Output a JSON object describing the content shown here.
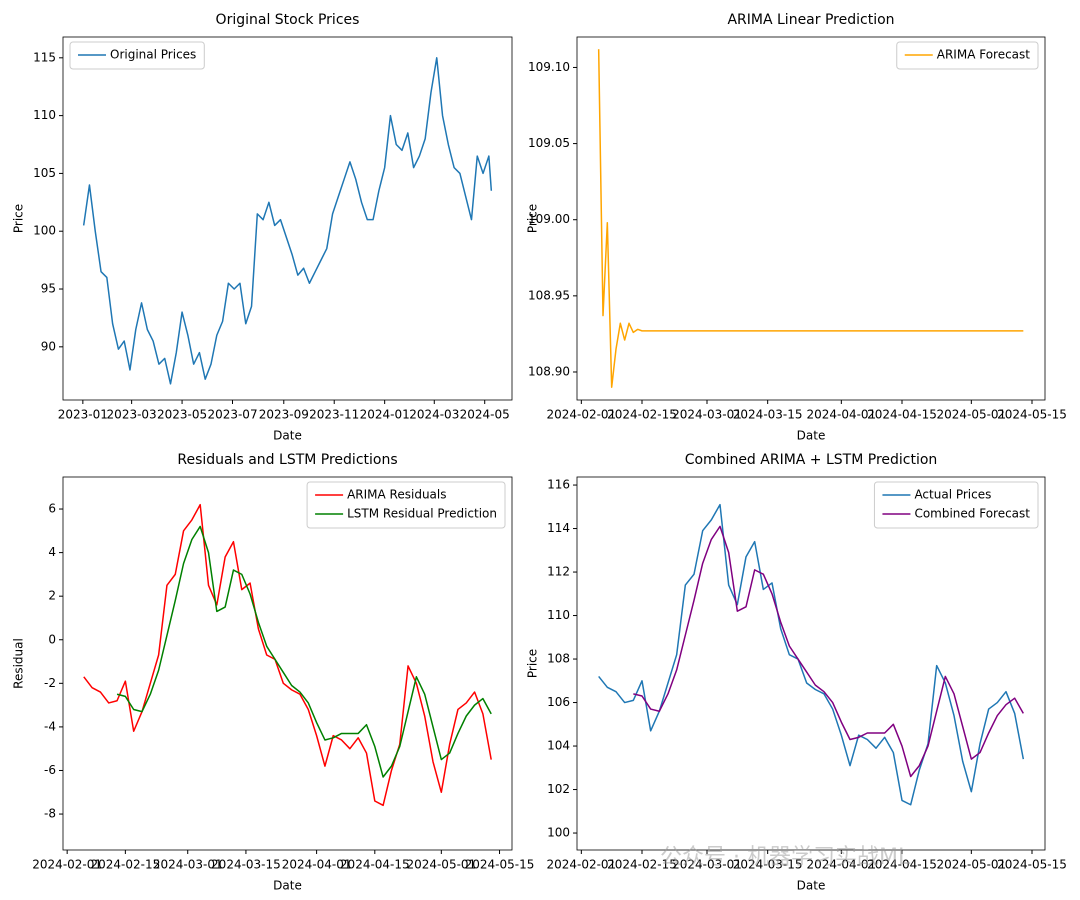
{
  "chart_data": [
    {
      "type": "line",
      "title": "Original Stock Prices",
      "x_label": "Date",
      "y_label": "Price",
      "legend": "upper left",
      "x": [
        "2023-01-02",
        "2023-01-09",
        "2023-01-16",
        "2023-01-23",
        "2023-01-30",
        "2023-02-06",
        "2023-02-13",
        "2023-02-20",
        "2023-02-27",
        "2023-03-06",
        "2023-03-13",
        "2023-03-20",
        "2023-03-27",
        "2023-04-03",
        "2023-04-10",
        "2023-04-17",
        "2023-04-24",
        "2023-05-01",
        "2023-05-08",
        "2023-05-15",
        "2023-05-22",
        "2023-05-29",
        "2023-06-05",
        "2023-06-12",
        "2023-06-19",
        "2023-06-26",
        "2023-07-03",
        "2023-07-10",
        "2023-07-17",
        "2023-07-24",
        "2023-07-31",
        "2023-08-07",
        "2023-08-14",
        "2023-08-21",
        "2023-08-28",
        "2023-09-04",
        "2023-09-11",
        "2023-09-18",
        "2023-09-25",
        "2023-10-02",
        "2023-10-09",
        "2023-10-16",
        "2023-10-23",
        "2023-10-30",
        "2023-11-06",
        "2023-11-13",
        "2023-11-20",
        "2023-11-27",
        "2023-12-04",
        "2023-12-11",
        "2023-12-18",
        "2023-12-25",
        "2024-01-01",
        "2024-01-08",
        "2024-01-15",
        "2024-01-22",
        "2024-01-29",
        "2024-02-05",
        "2024-02-12",
        "2024-02-19",
        "2024-02-26",
        "2024-03-04",
        "2024-03-11",
        "2024-03-18",
        "2024-03-25",
        "2024-04-01",
        "2024-04-08",
        "2024-04-15",
        "2024-04-22",
        "2024-04-29",
        "2024-05-06",
        "2024-05-09"
      ],
      "series": [
        {
          "name": "Original Prices",
          "color": "#1f77b4",
          "values": [
            100.5,
            104,
            100,
            96.5,
            96,
            92,
            89.8,
            90.5,
            88,
            91.5,
            93.8,
            91.5,
            90.5,
            88.5,
            89,
            86.8,
            89.5,
            93,
            91,
            88.5,
            89.5,
            87.2,
            88.5,
            91,
            92.2,
            95.5,
            95,
            95.5,
            92,
            93.5,
            101.5,
            101,
            102.5,
            100.5,
            101,
            99.5,
            98,
            96.2,
            96.8,
            95.5,
            96.5,
            97.5,
            98.5,
            101.5,
            103,
            104.5,
            106,
            104.5,
            102.5,
            101,
            101,
            103.5,
            105.5,
            110,
            107.5,
            107,
            108.5,
            105.5,
            106.5,
            108,
            112,
            115,
            110,
            107.5,
            105.5,
            105,
            103,
            101,
            106.5,
            105,
            106.5,
            103.5
          ]
        }
      ],
      "xlim": [
        "2022-12-08",
        "2024-06-03"
      ],
      "xticks": [
        "2023-01",
        "2023-03",
        "2023-05",
        "2023-07",
        "2023-09",
        "2023-11",
        "2024-01",
        "2024-03",
        "2024-05"
      ],
      "ylim": [
        85.4,
        116.8
      ],
      "yticks": [
        90,
        95,
        100,
        105,
        110,
        115
      ]
    },
    {
      "type": "line",
      "title": "ARIMA Linear Prediction",
      "x_label": "Date",
      "y_label": "Price",
      "legend": "upper right",
      "x": [
        "2024-02-05",
        "2024-02-06",
        "2024-02-07",
        "2024-02-08",
        "2024-02-09",
        "2024-02-10",
        "2024-02-11",
        "2024-02-12",
        "2024-02-13",
        "2024-02-14",
        "2024-02-15",
        "2024-05-13"
      ],
      "series": [
        {
          "name": "ARIMA Forecast",
          "color": "#ffa500",
          "values": [
            109.112,
            108.937,
            108.998,
            108.89,
            108.915,
            108.932,
            108.921,
            108.932,
            108.926,
            108.928,
            108.927,
            108.927
          ]
        }
      ],
      "xlim": [
        "2024-01-31",
        "2024-05-18"
      ],
      "xticks": [
        "2024-02-01",
        "2024-02-15",
        "2024-03-01",
        "2024-03-15",
        "2024-04-01",
        "2024-04-15",
        "2024-05-01",
        "2024-05-15"
      ],
      "ylim": [
        108.8816,
        109.12
      ],
      "yticks": [
        {
          "value": 108.9,
          "label": "108.90"
        },
        108.95,
        {
          "value": 109,
          "label": "109.00"
        },
        109.05,
        {
          "value": 109.1,
          "label": "109.10"
        }
      ]
    },
    {
      "type": "line",
      "title": "Residuals and LSTM Predictions",
      "x_label": "Date",
      "y_label": "Residual",
      "legend": "upper right",
      "x": [
        "2024-02-05",
        "2024-02-07",
        "2024-02-09",
        "2024-02-11",
        "2024-02-13",
        "2024-02-15",
        "2024-02-17",
        "2024-02-19",
        "2024-02-21",
        "2024-02-23",
        "2024-02-25",
        "2024-02-27",
        "2024-02-29",
        "2024-03-02",
        "2024-03-04",
        "2024-03-06",
        "2024-03-08",
        "2024-03-10",
        "2024-03-12",
        "2024-03-14",
        "2024-03-16",
        "2024-03-18",
        "2024-03-20",
        "2024-03-22",
        "2024-03-24",
        "2024-03-26",
        "2024-03-28",
        "2024-03-30",
        "2024-04-01",
        "2024-04-03",
        "2024-04-05",
        "2024-04-07",
        "2024-04-09",
        "2024-04-11",
        "2024-04-13",
        "2024-04-15",
        "2024-04-17",
        "2024-04-19",
        "2024-04-21",
        "2024-04-23",
        "2024-04-25",
        "2024-04-27",
        "2024-04-29",
        "2024-05-01",
        "2024-05-03",
        "2024-05-05",
        "2024-05-07",
        "2024-05-09",
        "2024-05-11",
        "2024-05-13"
      ],
      "series": [
        {
          "name": "ARIMA Residuals",
          "color": "#ff0000",
          "values": [
            -1.7,
            -2.2,
            -2.4,
            -2.9,
            -2.8,
            -1.9,
            -4.2,
            -3.3,
            -2.0,
            -0.7,
            2.5,
            3.0,
            5.0,
            5.5,
            6.2,
            2.5,
            1.6,
            3.8,
            4.5,
            2.3,
            2.6,
            0.5,
            -0.7,
            -0.9,
            -2.0,
            -2.3,
            -2.5,
            -3.2,
            -4.4,
            -5.8,
            -4.4,
            -4.6,
            -5.0,
            -4.5,
            -5.2,
            -7.4,
            -7.6,
            -6.0,
            -4.8,
            -1.2,
            -2.0,
            -3.5,
            -5.6,
            -7.0,
            -4.8,
            -3.2,
            -2.9,
            -2.4,
            -3.4,
            -5.5
          ]
        },
        {
          "name": "LSTM Residual Prediction",
          "color": "#008000",
          "values": [
            null,
            null,
            null,
            null,
            -2.5,
            -2.6,
            -3.2,
            -3.3,
            -2.5,
            -1.4,
            0.2,
            1.8,
            3.5,
            4.6,
            5.2,
            4.0,
            1.3,
            1.5,
            3.2,
            3.0,
            2.1,
            0.8,
            -0.3,
            -0.9,
            -1.5,
            -2.1,
            -2.4,
            -2.9,
            -3.8,
            -4.6,
            -4.5,
            -4.3,
            -4.3,
            -4.3,
            -3.9,
            -4.9,
            -6.3,
            -5.8,
            -4.9,
            -3.3,
            -1.7,
            -2.5,
            -4.0,
            -5.5,
            -5.2,
            -4.3,
            -3.5,
            -3.0,
            -2.7,
            -3.4
          ]
        }
      ],
      "xlim": [
        "2024-01-31",
        "2024-05-18"
      ],
      "xticks": [
        "2024-02-01",
        "2024-02-15",
        "2024-03-01",
        "2024-03-15",
        "2024-04-01",
        "2024-04-15",
        "2024-05-01",
        "2024-05-15"
      ],
      "ylim": [
        -9.65,
        7.47
      ],
      "yticks": [
        -8,
        -6,
        -4,
        -2,
        0,
        2,
        4,
        6
      ]
    },
    {
      "type": "line",
      "title": "Combined ARIMA + LSTM Prediction",
      "x_label": "Date",
      "y_label": "Price",
      "legend": "upper right",
      "x": [
        "2024-02-05",
        "2024-02-07",
        "2024-02-09",
        "2024-02-11",
        "2024-02-13",
        "2024-02-15",
        "2024-02-17",
        "2024-02-19",
        "2024-02-21",
        "2024-02-23",
        "2024-02-25",
        "2024-02-27",
        "2024-02-29",
        "2024-03-02",
        "2024-03-04",
        "2024-03-06",
        "2024-03-08",
        "2024-03-10",
        "2024-03-12",
        "2024-03-14",
        "2024-03-16",
        "2024-03-18",
        "2024-03-20",
        "2024-03-22",
        "2024-03-24",
        "2024-03-26",
        "2024-03-28",
        "2024-03-30",
        "2024-04-01",
        "2024-04-03",
        "2024-04-05",
        "2024-04-07",
        "2024-04-09",
        "2024-04-11",
        "2024-04-13",
        "2024-04-15",
        "2024-04-17",
        "2024-04-19",
        "2024-04-21",
        "2024-04-23",
        "2024-04-25",
        "2024-04-27",
        "2024-04-29",
        "2024-05-01",
        "2024-05-03",
        "2024-05-05",
        "2024-05-07",
        "2024-05-09",
        "2024-05-11",
        "2024-05-13"
      ],
      "series": [
        {
          "name": "Actual Prices",
          "color": "#1f77b4",
          "values": [
            107.2,
            106.7,
            106.5,
            106.0,
            106.1,
            107.0,
            104.7,
            105.6,
            106.9,
            108.2,
            111.4,
            111.9,
            113.9,
            114.4,
            115.1,
            111.4,
            110.5,
            112.7,
            113.4,
            111.2,
            111.5,
            109.4,
            108.2,
            108.0,
            106.9,
            106.6,
            106.4,
            105.7,
            104.5,
            103.1,
            104.5,
            104.3,
            103.9,
            104.4,
            103.7,
            101.5,
            101.3,
            102.9,
            104.1,
            107.7,
            106.9,
            105.4,
            103.3,
            101.9,
            104.1,
            105.7,
            106.0,
            106.5,
            105.5,
            103.4
          ]
        },
        {
          "name": "Combined Forecast",
          "color": "#800080",
          "values": [
            null,
            null,
            null,
            null,
            106.4,
            106.3,
            105.7,
            105.6,
            106.4,
            107.5,
            109.1,
            110.7,
            112.4,
            113.5,
            114.1,
            112.9,
            110.2,
            110.4,
            112.1,
            111.9,
            111.0,
            109.7,
            108.6,
            108.0,
            107.4,
            106.8,
            106.5,
            106.0,
            105.1,
            104.3,
            104.4,
            104.6,
            104.6,
            104.6,
            105.0,
            104.0,
            102.6,
            103.1,
            104.0,
            105.6,
            107.2,
            106.4,
            104.9,
            103.4,
            103.7,
            104.6,
            105.4,
            105.9,
            106.2,
            105.5
          ]
        }
      ],
      "xlim": [
        "2024-01-31",
        "2024-05-18"
      ],
      "xticks": [
        "2024-02-01",
        "2024-02-15",
        "2024-03-01",
        "2024-03-15",
        "2024-04-01",
        "2024-04-15",
        "2024-05-01",
        "2024-05-15"
      ],
      "ylim": [
        99.22,
        116.37
      ],
      "yticks": [
        100,
        102,
        104,
        106,
        108,
        110,
        112,
        114,
        116
      ]
    }
  ],
  "watermark": "公众号 · 机器学习实战ML"
}
